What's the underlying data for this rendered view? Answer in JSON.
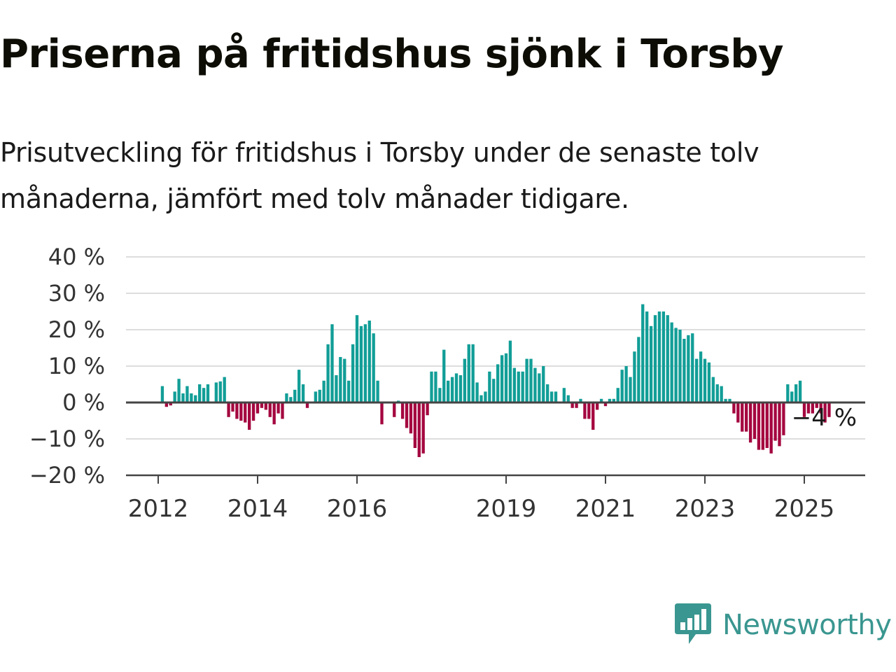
{
  "title": "Priserna på fritidshus sjönk i Torsby",
  "subtitle": "Prisutveckling för fritidshus i Torsby under de senaste tolv månaderna, jämfört med tolv månader tidigare.",
  "brand": {
    "name": "Newsworthy",
    "icon": "newsworthy-logo-icon",
    "color": "#3a9690"
  },
  "colors": {
    "positive": "#129e97",
    "negative": "#a4073f",
    "grid": "#dddddd",
    "axis": "#444444"
  },
  "chart_data": {
    "type": "bar",
    "title": "",
    "xlabel": "",
    "ylabel": "",
    "ylim": [
      -20,
      40
    ],
    "y_ticks": [
      {
        "value": 40,
        "label": "40 %"
      },
      {
        "value": 30,
        "label": "30 %"
      },
      {
        "value": 20,
        "label": "20 %"
      },
      {
        "value": 10,
        "label": "10 %"
      },
      {
        "value": 0,
        "label": "0 %"
      },
      {
        "value": -10,
        "label": "−10 %"
      },
      {
        "value": -20,
        "label": "−20 %"
      }
    ],
    "x_ticks": [
      "2012",
      "2014",
      "2016",
      "2019",
      "2021",
      "2023",
      "2025"
    ],
    "grid": true,
    "annotation": {
      "text": "−4 %",
      "value": -4
    },
    "series": [
      {
        "values": [
          {
            "x": "2012-02",
            "y": 4.5
          },
          {
            "x": "2012-03",
            "y": -1.2
          },
          {
            "x": "2012-04",
            "y": -0.8
          },
          {
            "x": "2012-05",
            "y": 3.0
          },
          {
            "x": "2012-06",
            "y": 6.5
          },
          {
            "x": "2012-07",
            "y": 2.5
          },
          {
            "x": "2012-08",
            "y": 4.5
          },
          {
            "x": "2012-09",
            "y": 2.5
          },
          {
            "x": "2012-10",
            "y": 2.0
          },
          {
            "x": "2012-11",
            "y": 5.0
          },
          {
            "x": "2012-12",
            "y": 4.0
          },
          {
            "x": "2013-01",
            "y": 5.0
          },
          {
            "x": "2013-03",
            "y": 5.5
          },
          {
            "x": "2013-04",
            "y": 5.8
          },
          {
            "x": "2013-05",
            "y": 7.0
          },
          {
            "x": "2013-06",
            "y": -4.0
          },
          {
            "x": "2013-07",
            "y": -2.5
          },
          {
            "x": "2013-08",
            "y": -4.5
          },
          {
            "x": "2013-09",
            "y": -5.0
          },
          {
            "x": "2013-10",
            "y": -5.5
          },
          {
            "x": "2013-11",
            "y": -7.5
          },
          {
            "x": "2013-12",
            "y": -5.0
          },
          {
            "x": "2014-01",
            "y": -3.0
          },
          {
            "x": "2014-02",
            "y": -1.5
          },
          {
            "x": "2014-03",
            "y": -2.0
          },
          {
            "x": "2014-04",
            "y": -4.0
          },
          {
            "x": "2014-05",
            "y": -6.0
          },
          {
            "x": "2014-06",
            "y": -3.0
          },
          {
            "x": "2014-07",
            "y": -4.5
          },
          {
            "x": "2014-08",
            "y": 2.5
          },
          {
            "x": "2014-09",
            "y": 1.5
          },
          {
            "x": "2014-10",
            "y": 3.5
          },
          {
            "x": "2014-11",
            "y": 9.0
          },
          {
            "x": "2014-12",
            "y": 5.0
          },
          {
            "x": "2015-01",
            "y": -1.5
          },
          {
            "x": "2015-03",
            "y": 3.0
          },
          {
            "x": "2015-04",
            "y": 3.5
          },
          {
            "x": "2015-05",
            "y": 6.0
          },
          {
            "x": "2015-06",
            "y": 16.0
          },
          {
            "x": "2015-07",
            "y": 21.5
          },
          {
            "x": "2015-08",
            "y": 7.5
          },
          {
            "x": "2015-09",
            "y": 12.5
          },
          {
            "x": "2015-10",
            "y": 12.0
          },
          {
            "x": "2015-11",
            "y": 6.0
          },
          {
            "x": "2015-12",
            "y": 16.0
          },
          {
            "x": "2016-01",
            "y": 24.0
          },
          {
            "x": "2016-02",
            "y": 21.0
          },
          {
            "x": "2016-03",
            "y": 21.5
          },
          {
            "x": "2016-04",
            "y": 22.5
          },
          {
            "x": "2016-05",
            "y": 19.0
          },
          {
            "x": "2016-06",
            "y": 6.0
          },
          {
            "x": "2016-07",
            "y": -6.0
          },
          {
            "x": "2016-10",
            "y": -4.0
          },
          {
            "x": "2016-11",
            "y": 0.5
          },
          {
            "x": "2016-12",
            "y": -4.5
          },
          {
            "x": "2017-01",
            "y": -7.0
          },
          {
            "x": "2017-02",
            "y": -8.5
          },
          {
            "x": "2017-03",
            "y": -12.5
          },
          {
            "x": "2017-04",
            "y": -15.0
          },
          {
            "x": "2017-05",
            "y": -14.0
          },
          {
            "x": "2017-06",
            "y": -3.5
          },
          {
            "x": "2017-07",
            "y": 8.5
          },
          {
            "x": "2017-08",
            "y": 8.5
          },
          {
            "x": "2017-09",
            "y": 4.0
          },
          {
            "x": "2017-10",
            "y": 14.5
          },
          {
            "x": "2017-11",
            "y": 6.0
          },
          {
            "x": "2017-12",
            "y": 7.0
          },
          {
            "x": "2018-01",
            "y": 8.0
          },
          {
            "x": "2018-02",
            "y": 7.5
          },
          {
            "x": "2018-03",
            "y": 12.0
          },
          {
            "x": "2018-04",
            "y": 16.0
          },
          {
            "x": "2018-05",
            "y": 16.0
          },
          {
            "x": "2018-06",
            "y": 5.5
          },
          {
            "x": "2018-07",
            "y": 2.0
          },
          {
            "x": "2018-08",
            "y": 3.0
          },
          {
            "x": "2018-09",
            "y": 8.5
          },
          {
            "x": "2018-10",
            "y": 6.5
          },
          {
            "x": "2018-11",
            "y": 10.5
          },
          {
            "x": "2018-12",
            "y": 13.0
          },
          {
            "x": "2019-01",
            "y": 13.5
          },
          {
            "x": "2019-02",
            "y": 17.0
          },
          {
            "x": "2019-03",
            "y": 9.5
          },
          {
            "x": "2019-04",
            "y": 8.5
          },
          {
            "x": "2019-05",
            "y": 8.5
          },
          {
            "x": "2019-06",
            "y": 12.0
          },
          {
            "x": "2019-07",
            "y": 12.0
          },
          {
            "x": "2019-08",
            "y": 9.5
          },
          {
            "x": "2019-09",
            "y": 8.0
          },
          {
            "x": "2019-10",
            "y": 10.0
          },
          {
            "x": "2019-11",
            "y": 5.0
          },
          {
            "x": "2019-12",
            "y": 3.0
          },
          {
            "x": "2020-01",
            "y": 3.0
          },
          {
            "x": "2020-03",
            "y": 4.0
          },
          {
            "x": "2020-04",
            "y": 2.0
          },
          {
            "x": "2020-05",
            "y": -1.5
          },
          {
            "x": "2020-06",
            "y": -1.5
          },
          {
            "x": "2020-07",
            "y": 1.0
          },
          {
            "x": "2020-08",
            "y": -4.5
          },
          {
            "x": "2020-09",
            "y": -4.5
          },
          {
            "x": "2020-10",
            "y": -7.5
          },
          {
            "x": "2020-11",
            "y": -2.0
          },
          {
            "x": "2020-12",
            "y": 1.0
          },
          {
            "x": "2021-01",
            "y": -1.0
          },
          {
            "x": "2021-02",
            "y": 1.0
          },
          {
            "x": "2021-03",
            "y": 1.0
          },
          {
            "x": "2021-04",
            "y": 4.0
          },
          {
            "x": "2021-05",
            "y": 9.0
          },
          {
            "x": "2021-06",
            "y": 10.0
          },
          {
            "x": "2021-07",
            "y": 7.0
          },
          {
            "x": "2021-08",
            "y": 14.0
          },
          {
            "x": "2021-09",
            "y": 18.0
          },
          {
            "x": "2021-10",
            "y": 27.0
          },
          {
            "x": "2021-11",
            "y": 25.0
          },
          {
            "x": "2021-12",
            "y": 21.0
          },
          {
            "x": "2022-01",
            "y": 24.0
          },
          {
            "x": "2022-02",
            "y": 25.0
          },
          {
            "x": "2022-03",
            "y": 25.0
          },
          {
            "x": "2022-04",
            "y": 24.0
          },
          {
            "x": "2022-05",
            "y": 22.0
          },
          {
            "x": "2022-06",
            "y": 20.5
          },
          {
            "x": "2022-07",
            "y": 20.0
          },
          {
            "x": "2022-08",
            "y": 17.5
          },
          {
            "x": "2022-09",
            "y": 18.5
          },
          {
            "x": "2022-10",
            "y": 19.0
          },
          {
            "x": "2022-11",
            "y": 12.0
          },
          {
            "x": "2022-12",
            "y": 14.0
          },
          {
            "x": "2023-01",
            "y": 12.0
          },
          {
            "x": "2023-02",
            "y": 11.0
          },
          {
            "x": "2023-03",
            "y": 7.0
          },
          {
            "x": "2023-04",
            "y": 5.0
          },
          {
            "x": "2023-05",
            "y": 4.5
          },
          {
            "x": "2023-06",
            "y": 1.0
          },
          {
            "x": "2023-07",
            "y": 1.0
          },
          {
            "x": "2023-08",
            "y": -3.0
          },
          {
            "x": "2023-09",
            "y": -5.5
          },
          {
            "x": "2023-10",
            "y": -8.0
          },
          {
            "x": "2023-11",
            "y": -8.0
          },
          {
            "x": "2023-12",
            "y": -11.0
          },
          {
            "x": "2024-01",
            "y": -10.0
          },
          {
            "x": "2024-02",
            "y": -13.0
          },
          {
            "x": "2024-03",
            "y": -13.0
          },
          {
            "x": "2024-04",
            "y": -12.5
          },
          {
            "x": "2024-05",
            "y": -14.0
          },
          {
            "x": "2024-06",
            "y": -10.5
          },
          {
            "x": "2024-07",
            "y": -12.0
          },
          {
            "x": "2024-08",
            "y": -9.0
          },
          {
            "x": "2024-09",
            "y": 5.0
          },
          {
            "x": "2024-10",
            "y": 3.0
          },
          {
            "x": "2024-11",
            "y": 5.0
          },
          {
            "x": "2024-12",
            "y": 6.0
          },
          {
            "x": "2025-01",
            "y": -4.0
          },
          {
            "x": "2025-02",
            "y": -3.0
          },
          {
            "x": "2025-03",
            "y": -3.0
          },
          {
            "x": "2025-04",
            "y": -1.5
          },
          {
            "x": "2025-05",
            "y": -3.0
          },
          {
            "x": "2025-06",
            "y": -5.5
          },
          {
            "x": "2025-07",
            "y": -4.0
          }
        ]
      }
    ]
  }
}
